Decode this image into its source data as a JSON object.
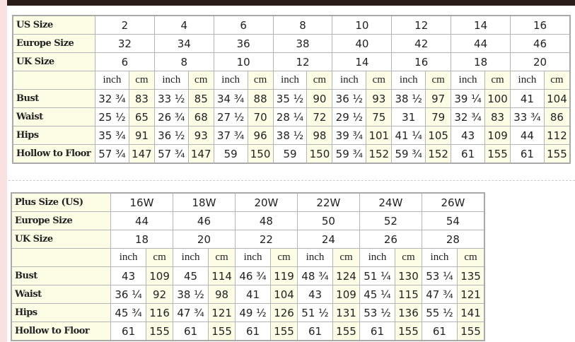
{
  "standard": {
    "header_rows": [
      {
        "label": "US Size",
        "values": [
          "2",
          "4",
          "6",
          "8",
          "10",
          "12",
          "14",
          "16"
        ]
      },
      {
        "label": "Europe Size",
        "values": [
          "32",
          "34",
          "36",
          "38",
          "40",
          "42",
          "44",
          "46"
        ]
      },
      {
        "label": "UK Size",
        "values": [
          "6",
          "8",
          "10",
          "12",
          "14",
          "16",
          "18",
          "20"
        ]
      }
    ],
    "units": [
      "inch",
      "cm"
    ],
    "measure_rows": [
      {
        "label": "Bust",
        "values": [
          "32 ¾",
          "83",
          "33 ½",
          "85",
          "34 ¾",
          "88",
          "35 ½",
          "90",
          "36 ½",
          "93",
          "38 ½",
          "97",
          "39 ¼",
          "100",
          "41",
          "104"
        ]
      },
      {
        "label": "Waist",
        "values": [
          "25 ½",
          "65",
          "26 ¾",
          "68",
          "27 ½",
          "70",
          "28 ¼",
          "72",
          "29 ½",
          "75",
          "31",
          "79",
          "32 ¾",
          "83",
          "33 ¾",
          "86"
        ]
      },
      {
        "label": "Hips",
        "values": [
          "35 ¾",
          "91",
          "36 ½",
          "93",
          "37 ¾",
          "96",
          "38 ½",
          "98",
          "39 ¾",
          "101",
          "41 ¼",
          "105",
          "43",
          "109",
          "44",
          "112"
        ]
      },
      {
        "label": "Hollow to Floor",
        "values": [
          "57 ¾",
          "147",
          "57 ¾",
          "147",
          "59",
          "150",
          "59",
          "150",
          "59 ¾",
          "152",
          "59 ¾",
          "152",
          "61",
          "155",
          "61",
          "155"
        ]
      }
    ]
  },
  "plus": {
    "header_rows": [
      {
        "label": "Plus Size (US)",
        "values": [
          "16W",
          "18W",
          "20W",
          "22W",
          "24W",
          "26W"
        ]
      },
      {
        "label": "Europe Size",
        "values": [
          "44",
          "46",
          "48",
          "50",
          "52",
          "54"
        ]
      },
      {
        "label": "UK Size",
        "values": [
          "18",
          "20",
          "22",
          "24",
          "26",
          "28"
        ]
      }
    ],
    "units": [
      "inch",
      "cm"
    ],
    "measure_rows": [
      {
        "label": "Bust",
        "values": [
          "43",
          "109",
          "45",
          "114",
          "46 ¾",
          "119",
          "48 ¾",
          "124",
          "51 ¼",
          "130",
          "53 ¼",
          "135"
        ]
      },
      {
        "label": "Waist",
        "values": [
          "36 ¼",
          "92",
          "38 ½",
          "98",
          "41",
          "104",
          "43",
          "109",
          "45 ¼",
          "115",
          "47 ¾",
          "121"
        ]
      },
      {
        "label": "Hips",
        "values": [
          "45 ¾",
          "116",
          "47 ¾",
          "121",
          "49 ½",
          "126",
          "51 ½",
          "131",
          "53 ½",
          "136",
          "55 ½",
          "141"
        ]
      },
      {
        "label": "Hollow to Floor",
        "values": [
          "61",
          "155",
          "61",
          "155",
          "61",
          "155",
          "61",
          "155",
          "61",
          "155",
          "61",
          "155"
        ]
      }
    ]
  }
}
